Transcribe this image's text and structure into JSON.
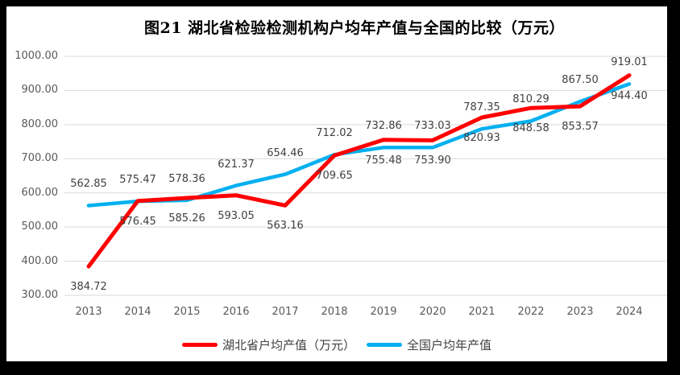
{
  "chart_data": {
    "type": "line",
    "title": "图21 湖北省检验检测机构户均年产值与全国的比较（万元）",
    "categories": [
      "2013",
      "2014",
      "2015",
      "2016",
      "2017",
      "2018",
      "2019",
      "2020",
      "2021",
      "2022",
      "2023",
      "2024"
    ],
    "series": [
      {
        "name": "湖北省户均产值（万元）",
        "color": "#FF0000",
        "label_position": "below",
        "values": [
          384.72,
          576.45,
          585.26,
          593.05,
          563.16,
          709.65,
          755.48,
          753.9,
          820.93,
          848.58,
          853.57,
          944.4
        ]
      },
      {
        "name": "全国户均年产值",
        "color": "#00B0F0",
        "label_position": "above",
        "values": [
          562.85,
          575.47,
          578.36,
          621.37,
          654.46,
          712.02,
          732.86,
          733.03,
          787.35,
          810.29,
          867.5,
          919.01
        ]
      }
    ],
    "xlabel": "",
    "ylabel": "",
    "ylim": [
      300,
      1000
    ],
    "ytick_values": [
      300,
      400,
      500,
      600,
      700,
      800,
      900,
      1000
    ],
    "ytick_labels": [
      "300.00",
      "400.00",
      "500.00",
      "600.00",
      "700.00",
      "800.00",
      "900.00",
      "1000.00"
    ],
    "grid": true,
    "gridline_color": "#D9D9D9",
    "axis_text_color": "#595959",
    "data_label_color": "#404040",
    "legend_position": "bottom",
    "frame_color": "#000000",
    "background_color": "#ffffff"
  }
}
